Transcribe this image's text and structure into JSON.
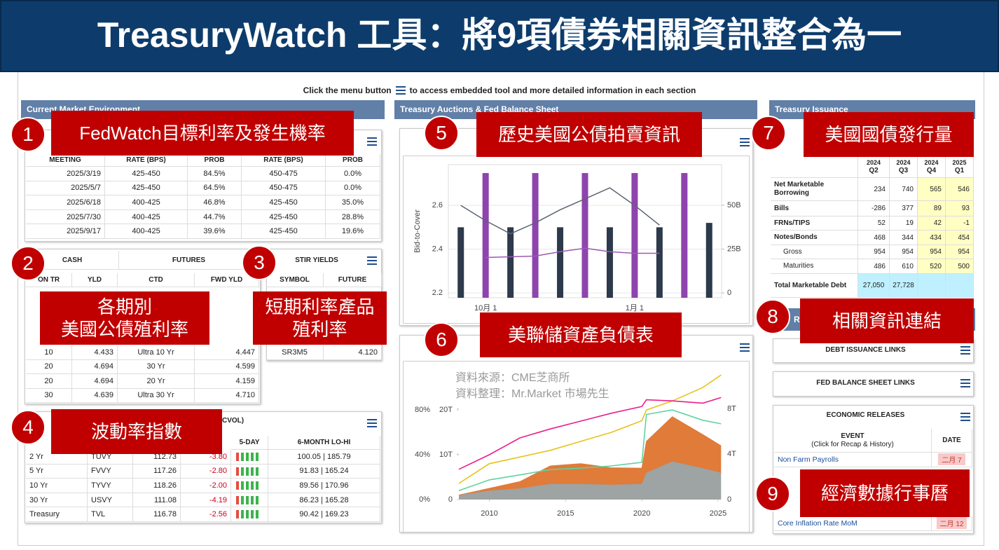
{
  "header": {
    "title": "TreasuryWatch 工具：將9項債券相關資訊整合為一"
  },
  "instruction": {
    "before": "Click the menu button",
    "after": "to access embedded tool and more detailed information in each section"
  },
  "sections": {
    "market": "Current Market Environment",
    "auctions": "Treasury Auctions & Fed Balance Sheet",
    "issuance": "Treasury Issuance",
    "resources": "R"
  },
  "callouts": [
    {
      "number": "1",
      "lines": [
        "FedWatch目標利率及發生機率"
      ]
    },
    {
      "number": "2",
      "lines": [
        "各期別",
        "美國公債殖利率"
      ]
    },
    {
      "number": "3",
      "lines": [
        "短期利率產品",
        "殖利率"
      ]
    },
    {
      "number": "4",
      "lines": [
        "波動率指數"
      ]
    },
    {
      "number": "5",
      "lines": [
        "歷史美國公債拍賣資訊"
      ]
    },
    {
      "number": "6",
      "lines": [
        "美聯儲資產負債表"
      ]
    },
    {
      "number": "7",
      "lines": [
        "美國國債發行量"
      ]
    },
    {
      "number": "8",
      "lines": [
        "相關資訊連結"
      ]
    },
    {
      "number": "9",
      "lines": [
        "經濟數據行事曆"
      ]
    }
  ],
  "fedwatch": {
    "columns": [
      "MEETING",
      "RATE (BPS)",
      "PROB",
      "RATE (BPS)",
      "PROB"
    ],
    "rows": [
      [
        "2025/3/19",
        "425-450",
        "84.5%",
        "450-475",
        "0.0%"
      ],
      [
        "2025/5/7",
        "425-450",
        "64.5%",
        "450-475",
        "0.0%"
      ],
      [
        "2025/6/18",
        "400-425",
        "46.8%",
        "425-450",
        "35.0%"
      ],
      [
        "2025/7/30",
        "400-425",
        "44.7%",
        "425-450",
        "28.8%"
      ],
      [
        "2025/9/17",
        "400-425",
        "39.6%",
        "425-450",
        "19.6%"
      ]
    ]
  },
  "yields": {
    "groups": [
      "CASH",
      "FUTURES"
    ],
    "columns": [
      "ON TR",
      "YLD",
      "CTD",
      "FWD YLD"
    ],
    "rows": [
      [
        "10",
        "4.433",
        "Ultra 10 Yr",
        "4.447"
      ],
      [
        "20",
        "4.694",
        "30 Yr",
        "4.599"
      ],
      [
        "20",
        "4.694",
        "20 Yr",
        "4.159"
      ],
      [
        "30",
        "4.639",
        "Ultra 30 Yr",
        "4.710"
      ]
    ]
  },
  "stir": {
    "title": "STIR YIELDS",
    "columns": [
      "SYMBOL",
      "FUTURE"
    ],
    "rows": [
      [
        "SR3M5",
        "4.120"
      ]
    ]
  },
  "volatility": {
    "title": "CVOL)",
    "columns": [
      "5-DAY",
      "6-MONTH LO-HI"
    ],
    "rows": [
      [
        "2 Yr",
        "TUVY",
        "112.73",
        "-3.80",
        "100.05 | 185.79"
      ],
      [
        "5 Yr",
        "FVVY",
        "117.26",
        "-2.80",
        "91.83 | 165.24"
      ],
      [
        "10 Yr",
        "TYVY",
        "118.26",
        "-2.00",
        "89.56 | 170.96"
      ],
      [
        "30 Yr",
        "USVY",
        "111.08",
        "-4.19",
        "86.23 | 165.28"
      ],
      [
        "Treasury",
        "TVL",
        "116.78",
        "-2.56",
        "90.42 | 169.23"
      ]
    ]
  },
  "chart_data": [
    {
      "type": "bar",
      "ylabel": "Bid-to-Cover",
      "categories": [
        null,
        "10月 1",
        null,
        null,
        null,
        null,
        null,
        "1月 1",
        null,
        null,
        null
      ],
      "ylim": [
        2.178,
        2.786
      ],
      "yticks": [
        2.2,
        2.4,
        2.6
      ],
      "y2lim": [
        -2.8,
        73.2
      ],
      "y2ticks": [
        0,
        {
          "value": 25,
          "label": "25B"
        },
        {
          "value": 50,
          "label": "50B"
        }
      ],
      "grid": true,
      "series": [
        {
          "type": "bar",
          "color": "#2c3a4b",
          "values": [
            2.5,
            null,
            2.5,
            null,
            2.5,
            null,
            2.5,
            null,
            2.5,
            null,
            2.52
          ]
        },
        {
          "type": "bar",
          "color": "#8e44ad",
          "axis": "y2",
          "values": [
            null,
            68.4,
            null,
            68.4,
            null,
            68.4,
            null,
            68.4,
            null,
            68.4,
            null
          ]
        },
        {
          "type": "line",
          "color": "#5a6470",
          "values": [
            2.6,
            2.53,
            2.47,
            2.52,
            2.58,
            2.63,
            2.68,
            2.6,
            2.51,
            null,
            null
          ]
        },
        {
          "type": "line",
          "color": "#9b59b6",
          "axis": "y2",
          "values": [
            null,
            20.2,
            20.6,
            21,
            23.5,
            25.5,
            23.5,
            22.6,
            22.6,
            null,
            null
          ]
        }
      ]
    },
    {
      "type": "area",
      "annotations": [
        "資料來源：CME芝商所",
        "資料整理：Mr.Market 市場先生"
      ],
      "x": [
        2008,
        2010,
        2012,
        2014,
        2016,
        2018,
        2020,
        2020.3,
        2022,
        2024,
        2025.2
      ],
      "xlim": [
        2008,
        2025.23
      ],
      "xticks": [
        2010,
        2015,
        2020,
        2025
      ],
      "ylim": [
        0,
        29.4
      ],
      "yticks": [
        0,
        {
          "value": 10,
          "label": "10T"
        },
        {
          "value": 20,
          "label": "20T"
        }
      ],
      "y2lim": [
        0,
        11.6
      ],
      "y2ticks": [
        0,
        {
          "value": 4,
          "label": "4T"
        },
        {
          "value": 8,
          "label": "8T"
        }
      ],
      "y3lim": [
        0,
        117.5
      ],
      "y3ticks": [
        {
          "value": 0,
          "label": "0%"
        },
        {
          "value": 40,
          "label": "40%"
        },
        {
          "value": 80,
          "label": "80%"
        }
      ],
      "series": [
        {
          "type": "area",
          "color": "#9ea3a3",
          "values": [
            1,
            2,
            2.5,
            3.5,
            3.5,
            3.3,
            3.5,
            6,
            8.5,
            7,
            6
          ]
        },
        {
          "type": "area",
          "stacked": true,
          "color": "#e07b39",
          "values": [
            0,
            0.5,
            1.5,
            4,
            4.5,
            3.8,
            3.5,
            7,
            10,
            7.5,
            6
          ]
        },
        {
          "type": "line",
          "color": "#e8c21a",
          "values": [
            3.6,
            8,
            9.5,
            11,
            13,
            15,
            17.6,
            20,
            22,
            25,
            27.8
          ]
        },
        {
          "type": "line",
          "color": "#5fd3a0",
          "values": [
            2,
            4.4,
            5.5,
            6.7,
            7,
            7.5,
            8.3,
            19,
            20,
            17.7,
            16.9
          ]
        },
        {
          "type": "line",
          "color": "#e91e8c",
          "axis": "y3",
          "values": [
            27,
            40,
            55,
            63,
            70,
            77,
            83,
            89,
            88,
            86,
            91
          ]
        }
      ]
    }
  ],
  "issuance": {
    "columns": [
      {
        "year": "2024",
        "quarter": "Q2"
      },
      {
        "year": "2024",
        "quarter": "Q3"
      },
      {
        "year": "2024",
        "quarter": "Q4"
      },
      {
        "year": "2025",
        "quarter": "Q1"
      }
    ],
    "rows": [
      {
        "label": "Net Marketable Borrowing",
        "values": [
          "234",
          "740",
          "565",
          "546"
        ]
      },
      {
        "label": "Bills",
        "values": [
          "-286",
          "377",
          "89",
          "93"
        ]
      },
      {
        "label": "FRNs/TIPS",
        "values": [
          "52",
          "19",
          "42",
          "-1"
        ]
      },
      {
        "label": "Notes/Bonds",
        "values": [
          "468",
          "344",
          "434",
          "454"
        ]
      },
      {
        "label": "Gross",
        "values": [
          "954",
          "954",
          "954",
          "954"
        ]
      },
      {
        "label": "Maturities",
        "values": [
          "486",
          "610",
          "520",
          "500"
        ]
      },
      {
        "label": "Total Marketable Debt",
        "values": [
          "27,050",
          "27,728",
          null,
          null
        ]
      }
    ]
  },
  "links": {
    "debt": "DEBT ISSUANCE LINKS",
    "fed": "FED BALANCE SHEET LINKS"
  },
  "economic": {
    "title": "ECONOMIC RELEASES",
    "columns": [
      "EVENT",
      "(Click for Recap & History)",
      "DATE"
    ],
    "rows": [
      [
        "Non Farm Payrolls",
        "二月 7"
      ],
      [
        "Core Inflation Rate MoM",
        "二月 12"
      ]
    ]
  }
}
